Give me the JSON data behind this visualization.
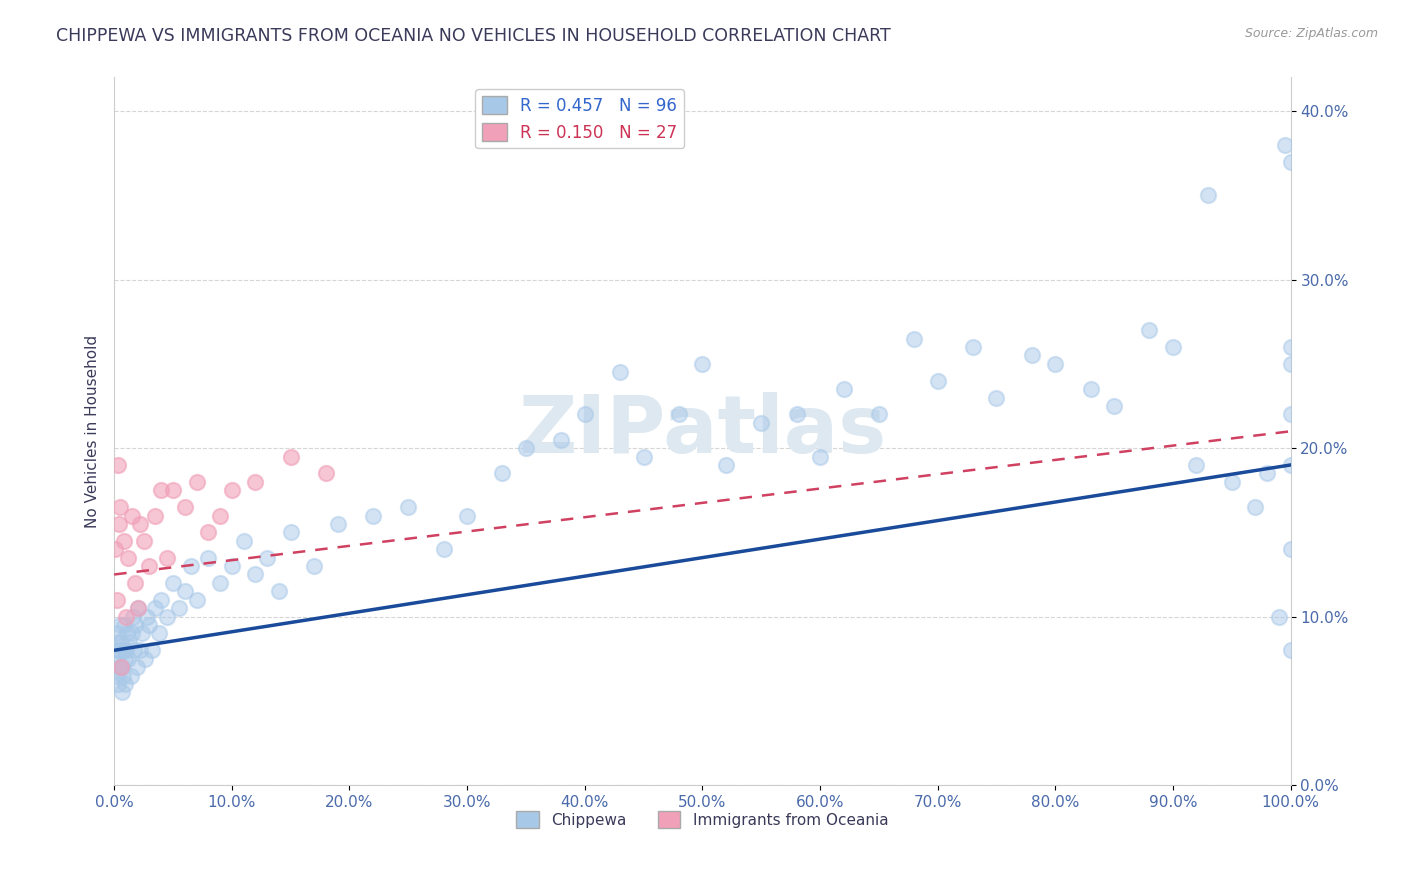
{
  "title": "CHIPPEWA VS IMMIGRANTS FROM OCEANIA NO VEHICLES IN HOUSEHOLD CORRELATION CHART",
  "source": "Source: ZipAtlas.com",
  "ylabel": "No Vehicles in Household",
  "xlim": [
    0,
    100
  ],
  "ylim": [
    0,
    42
  ],
  "xtick_vals": [
    0,
    10,
    20,
    30,
    40,
    50,
    60,
    70,
    80,
    90,
    100
  ],
  "ytick_vals": [
    0,
    10,
    20,
    30,
    40
  ],
  "legend1_label": "R = 0.457   N = 96",
  "legend2_label": "R = 0.150   N = 27",
  "chippewa_color": "#a8c8e8",
  "oceania_color": "#f0a0b8",
  "line_blue": "#1a4a9a",
  "line_pink": "#d04060",
  "background": "#ffffff",
  "grid_color": "#cccccc",
  "title_color": "#3a3a5a",
  "axis_color": "#4a6aaa",
  "watermark_color": "#dde8f0",
  "chippewa_x": [
    0.1,
    0.15,
    0.2,
    0.25,
    0.3,
    0.35,
    0.4,
    0.45,
    0.5,
    0.55,
    0.6,
    0.65,
    0.7,
    0.75,
    0.8,
    0.85,
    0.9,
    0.95,
    1.0,
    1.1,
    1.2,
    1.3,
    1.4,
    1.5,
    1.6,
    1.7,
    1.8,
    1.9,
    2.0,
    2.2,
    2.4,
    2.6,
    2.8,
    3.0,
    3.2,
    3.5,
    3.8,
    4.0,
    4.5,
    5.0,
    5.5,
    6.0,
    6.5,
    7.0,
    8.0,
    9.0,
    10.0,
    11.0,
    12.0,
    13.0,
    14.0,
    15.0,
    17.0,
    19.0,
    22.0,
    25.0,
    28.0,
    30.0,
    33.0,
    35.0,
    38.0,
    40.0,
    43.0,
    45.0,
    48.0,
    50.0,
    52.0,
    55.0,
    58.0,
    60.0,
    62.0,
    65.0,
    68.0,
    70.0,
    73.0,
    75.0,
    78.0,
    80.0,
    83.0,
    85.0,
    88.0,
    90.0,
    92.0,
    93.0,
    95.0,
    97.0,
    98.0,
    99.0,
    99.5,
    100.0,
    100.0,
    100.0,
    100.0,
    100.0,
    100.0,
    100.0
  ],
  "chippewa_y": [
    8.0,
    6.5,
    7.5,
    9.0,
    8.5,
    6.0,
    7.0,
    8.0,
    9.5,
    7.0,
    8.5,
    5.5,
    7.0,
    6.5,
    8.0,
    9.5,
    7.5,
    6.0,
    8.0,
    9.0,
    7.5,
    8.5,
    6.5,
    9.0,
    10.0,
    8.0,
    9.5,
    7.0,
    10.5,
    8.0,
    9.0,
    7.5,
    10.0,
    9.5,
    8.0,
    10.5,
    9.0,
    11.0,
    10.0,
    12.0,
    10.5,
    11.5,
    13.0,
    11.0,
    13.5,
    12.0,
    13.0,
    14.5,
    12.5,
    13.5,
    11.5,
    15.0,
    13.0,
    15.5,
    16.0,
    16.5,
    14.0,
    16.0,
    18.5,
    20.0,
    20.5,
    22.0,
    24.5,
    19.5,
    22.0,
    25.0,
    19.0,
    21.5,
    22.0,
    19.5,
    23.5,
    22.0,
    26.5,
    24.0,
    26.0,
    23.0,
    25.5,
    25.0,
    23.5,
    22.5,
    27.0,
    26.0,
    19.0,
    35.0,
    18.0,
    16.5,
    18.5,
    10.0,
    38.0,
    26.0,
    25.0,
    19.0,
    22.0,
    37.0,
    14.0,
    8.0
  ],
  "oceania_x": [
    0.1,
    0.2,
    0.3,
    0.4,
    0.5,
    0.6,
    0.8,
    1.0,
    1.2,
    1.5,
    1.8,
    2.0,
    2.2,
    2.5,
    3.0,
    3.5,
    4.0,
    4.5,
    5.0,
    6.0,
    7.0,
    8.0,
    9.0,
    10.0,
    12.0,
    15.0,
    18.0
  ],
  "oceania_y": [
    14.0,
    11.0,
    19.0,
    15.5,
    16.5,
    7.0,
    14.5,
    10.0,
    13.5,
    16.0,
    12.0,
    10.5,
    15.5,
    14.5,
    13.0,
    16.0,
    17.5,
    13.5,
    17.5,
    16.5,
    18.0,
    15.0,
    16.0,
    17.5,
    18.0,
    19.5,
    18.5
  ],
  "blue_line_x": [
    0,
    100
  ],
  "blue_line_y": [
    8.0,
    19.0
  ],
  "pink_line_x": [
    0,
    100
  ],
  "pink_line_y": [
    12.5,
    21.0
  ]
}
